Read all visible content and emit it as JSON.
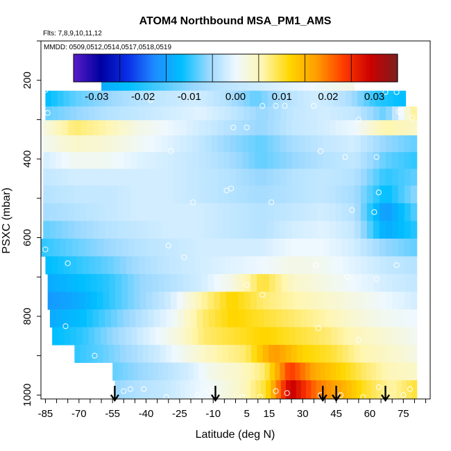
{
  "chart_data": {
    "type": "heatmap",
    "title": "ATOM4 Northbound MSA_PM1_AMS",
    "subtitle_flights": "Flts: 7,8,9,10,11,12",
    "subtitle_dates": "MMDD: 0509,0512,0514,0517,0518,0519",
    "xlabel": "Latitude (deg N)",
    "ylabel": "PSXC (mbar)",
    "xlim": [
      -87,
      87
    ],
    "ylim": [
      1010,
      100
    ],
    "x_ticks": [
      "-85",
      "-70",
      "-55",
      "-40",
      "-25",
      "-10",
      "5",
      "15",
      "30",
      "45",
      "60",
      "75"
    ],
    "x_tick_values": [
      -85,
      -70,
      -55,
      -40,
      -25,
      -10,
      5,
      15,
      30,
      45,
      60,
      75
    ],
    "y_ticks": [
      "200",
      "400",
      "600",
      "800",
      "1000"
    ],
    "y_tick_values": [
      200,
      400,
      600,
      800,
      1000
    ],
    "colorbar": {
      "min": -0.035,
      "max": 0.035,
      "tick_labels": [
        "-0.03",
        "-0.02",
        "-0.01",
        "0.00",
        "0.01",
        "0.02",
        "0.03"
      ],
      "tick_values": [
        -0.03,
        -0.02,
        -0.01,
        0.0,
        0.01,
        0.02,
        0.03
      ],
      "colors": [
        "#5a1ec8",
        "#0000a0",
        "#0a2ee6",
        "#1e8cff",
        "#00bfff",
        "#9ad8ff",
        "#eef8ff",
        "#fff6b0",
        "#ffd700",
        "#ff9d00",
        "#ff3c00",
        "#cc0000",
        "#7a1f1f"
      ]
    },
    "grid": false,
    "legend": "top colorbar",
    "arrow_latitudes": [
      -54,
      -9,
      39,
      45,
      67
    ],
    "layers": [
      {
        "p": 165,
        "lat_min": -60,
        "lat_max": 53,
        "values": [
          -0.012,
          -0.01,
          -0.008,
          -0.006,
          -0.005,
          -0.004,
          -0.003,
          -0.002,
          -0.001,
          0.0,
          0.001,
          0.002
        ]
      },
      {
        "p": 203,
        "lat_min": -60,
        "lat_max": 53,
        "values": [
          -0.014,
          -0.012,
          -0.01,
          -0.008,
          -0.006,
          -0.004,
          -0.003,
          -0.002,
          -0.001,
          0.0,
          0.001,
          0.002
        ]
      },
      {
        "p": 250,
        "lat_min": -85,
        "lat_max": 76,
        "values": [
          -0.012,
          -0.008,
          -0.006,
          -0.004,
          -0.003,
          -0.002,
          -0.004,
          -0.008,
          -0.004,
          -0.002,
          -0.004,
          -0.01,
          -0.012
        ]
      },
      {
        "p": 283,
        "lat_min": -85,
        "lat_max": 81,
        "values": [
          -0.008,
          -0.006,
          -0.004,
          -0.003,
          -0.002,
          -0.001,
          -0.003,
          -0.006,
          -0.003,
          -0.002,
          -0.003,
          -0.008,
          0.008
        ]
      },
      {
        "p": 320,
        "lat_min": -86,
        "lat_max": 81,
        "values": [
          0.002,
          0.008,
          0.006,
          0.002,
          0.0,
          -0.002,
          -0.004,
          -0.006,
          -0.003,
          -0.002,
          0.0,
          0.006,
          0.004
        ]
      },
      {
        "p": 360,
        "lat_min": -86,
        "lat_max": 81,
        "values": [
          0.001,
          0.004,
          0.003,
          0.001,
          -0.001,
          -0.003,
          -0.006,
          -0.008,
          -0.005,
          -0.003,
          -0.002,
          -0.006,
          -0.008
        ]
      },
      {
        "p": 405,
        "lat_min": -86,
        "lat_max": 81,
        "values": [
          -0.002,
          0.001,
          0.001,
          -0.001,
          -0.002,
          -0.003,
          -0.005,
          -0.008,
          -0.006,
          -0.004,
          -0.003,
          -0.008,
          -0.01
        ]
      },
      {
        "p": 445,
        "lat_min": -86,
        "lat_max": 81,
        "values": [
          -0.003,
          -0.002,
          -0.002,
          -0.002,
          -0.002,
          -0.003,
          -0.004,
          -0.006,
          -0.004,
          -0.003,
          -0.004,
          -0.01,
          -0.008
        ]
      },
      {
        "p": 490,
        "lat_min": -86,
        "lat_max": 81,
        "values": [
          -0.004,
          -0.003,
          -0.003,
          -0.002,
          -0.002,
          -0.003,
          -0.004,
          -0.005,
          -0.004,
          -0.003,
          -0.005,
          -0.012,
          -0.006
        ]
      },
      {
        "p": 535,
        "lat_min": -86,
        "lat_max": 81,
        "values": [
          -0.005,
          -0.004,
          -0.003,
          -0.002,
          -0.002,
          -0.002,
          -0.003,
          -0.004,
          -0.003,
          -0.002,
          -0.004,
          -0.016,
          -0.008
        ]
      },
      {
        "p": 580,
        "lat_min": -86,
        "lat_max": 81,
        "values": [
          -0.008,
          -0.006,
          -0.004,
          -0.003,
          -0.002,
          -0.002,
          -0.003,
          -0.004,
          -0.002,
          -0.001,
          -0.003,
          -0.014,
          -0.01
        ]
      },
      {
        "p": 625,
        "lat_min": -87,
        "lat_max": 81,
        "values": [
          -0.01,
          -0.008,
          -0.006,
          -0.004,
          -0.003,
          -0.002,
          -0.002,
          -0.002,
          0.0,
          0.0,
          -0.002,
          -0.006,
          -0.008
        ]
      },
      {
        "p": 670,
        "lat_min": -85,
        "lat_max": 81,
        "values": [
          -0.012,
          -0.01,
          -0.008,
          -0.005,
          -0.003,
          -0.002,
          -0.001,
          0.0,
          0.002,
          0.001,
          -0.001,
          -0.003,
          -0.004
        ]
      },
      {
        "p": 715,
        "lat_min": -84,
        "lat_max": 81,
        "values": [
          -0.014,
          -0.012,
          -0.01,
          -0.006,
          -0.004,
          -0.002,
          0.002,
          0.01,
          0.004,
          0.002,
          0.0,
          -0.002,
          -0.003
        ]
      },
      {
        "p": 760,
        "lat_min": -84,
        "lat_max": 81,
        "values": [
          -0.016,
          -0.014,
          -0.01,
          -0.006,
          -0.002,
          0.006,
          0.012,
          0.008,
          0.006,
          0.004,
          0.002,
          0.0,
          -0.002
        ]
      },
      {
        "p": 805,
        "lat_min": -83,
        "lat_max": 81,
        "values": [
          -0.014,
          -0.012,
          -0.008,
          -0.004,
          0.0,
          0.008,
          0.012,
          0.01,
          0.008,
          0.006,
          0.003,
          0.001,
          0.0
        ]
      },
      {
        "p": 850,
        "lat_min": -82,
        "lat_max": 81,
        "values": [
          -0.012,
          -0.01,
          -0.006,
          -0.002,
          0.002,
          0.008,
          0.01,
          0.012,
          0.01,
          0.008,
          0.005,
          0.003,
          0.001
        ]
      },
      {
        "p": 895,
        "lat_min": -72,
        "lat_max": 81,
        "values": [
          -0.01,
          -0.008,
          -0.005,
          -0.002,
          0.002,
          0.006,
          0.008,
          0.018,
          0.012,
          0.01,
          0.006,
          0.004,
          0.002
        ]
      },
      {
        "p": 940,
        "lat_min": -55,
        "lat_max": 81,
        "values": [
          -0.008,
          -0.006,
          -0.004,
          -0.002,
          0.002,
          0.004,
          0.008,
          0.024,
          0.016,
          0.012,
          0.008,
          0.005,
          0.004
        ]
      },
      {
        "p": 985,
        "lat_min": -54,
        "lat_max": 81,
        "values": [
          -0.006,
          -0.004,
          -0.003,
          -0.001,
          0.001,
          0.004,
          0.01,
          0.03,
          0.02,
          0.016,
          0.01,
          0.006,
          0.01
        ]
      }
    ],
    "sample_points": [
      [
        -85,
        225
      ],
      [
        -76,
        210
      ],
      [
        -84,
        283
      ],
      [
        -38,
        250
      ],
      [
        -1,
        320
      ],
      [
        5,
        320
      ],
      [
        12,
        265
      ],
      [
        18,
        265
      ],
      [
        22,
        265
      ],
      [
        35,
        265
      ],
      [
        55,
        210
      ],
      [
        67,
        230
      ],
      [
        72,
        230
      ],
      [
        73,
        280
      ],
      [
        74,
        280
      ],
      [
        49,
        395
      ],
      [
        55,
        300
      ],
      [
        63,
        395
      ],
      [
        79,
        295
      ],
      [
        -29,
        380
      ],
      [
        -19,
        510
      ],
      [
        -4,
        480
      ],
      [
        -2,
        475
      ],
      [
        16,
        510
      ],
      [
        38,
        380
      ],
      [
        64,
        485
      ],
      [
        62,
        535
      ],
      [
        52,
        530
      ],
      [
        -85,
        630
      ],
      [
        -75,
        665
      ],
      [
        -30,
        620
      ],
      [
        -23,
        650
      ],
      [
        5,
        720
      ],
      [
        12,
        745
      ],
      [
        36,
        670
      ],
      [
        50,
        700
      ],
      [
        63,
        705
      ],
      [
        72,
        670
      ],
      [
        -76,
        825
      ],
      [
        -63,
        900
      ],
      [
        -50,
        990
      ],
      [
        -47,
        985
      ],
      [
        -41,
        985
      ],
      [
        -31,
        1005
      ],
      [
        -17,
        1000
      ],
      [
        -12,
        990
      ],
      [
        -10,
        985
      ],
      [
        3,
        1005
      ],
      [
        11,
        1005
      ],
      [
        18,
        990
      ],
      [
        23,
        995
      ],
      [
        38,
        1000
      ],
      [
        47,
        1000
      ],
      [
        57,
        1005
      ],
      [
        64,
        980
      ],
      [
        75,
        1000
      ],
      [
        78,
        985
      ],
      [
        37,
        830
      ],
      [
        55,
        860
      ]
    ]
  }
}
